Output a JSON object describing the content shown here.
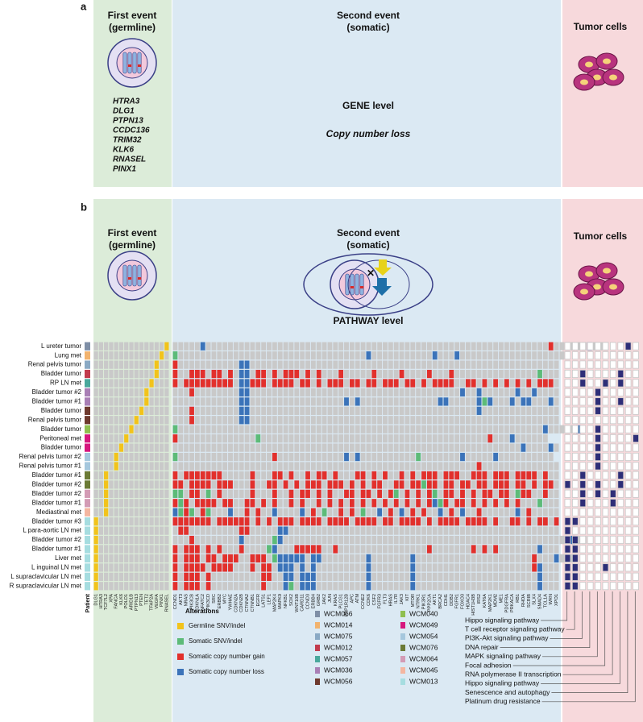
{
  "panel_a": {
    "label": "a",
    "first_event": {
      "title_line1": "First event",
      "title_line2": "(germline)",
      "genes": [
        "HTRA3",
        "DLG1",
        "PTPN13",
        "CCDC136",
        "TRIM32",
        "KLK6",
        "RNASEL",
        "PINX1"
      ]
    },
    "second_event": {
      "title_line1": "Second event",
      "title_line2": "(somatic)",
      "level": "GENE level",
      "note": "Copy number loss"
    },
    "tumor": {
      "title": "Tumor cells"
    }
  },
  "panel_b": {
    "label": "b",
    "first_event": {
      "title_line1": "First event",
      "title_line2": "(germline)"
    },
    "second_event": {
      "title_line1": "Second event",
      "title_line2": "(somatic)",
      "level": "PATHWAY level"
    },
    "tumor": {
      "title": "Tumor cells"
    },
    "heatmap": {
      "patient_label": "Patient",
      "germline_genes": [
        "DLG1",
        "HTRA3",
        "TCF7L2",
        "XPA",
        "FANCA",
        "KLK6",
        "POLD1",
        "ARID1B",
        "PTPN13",
        "PTEN",
        "TET2",
        "TFAP2A",
        "VEGFA",
        "PINX1",
        "RNASEL"
      ],
      "somatic_genes": [
        "CCND1",
        "AKT3",
        "NRAS",
        "PIK3CB",
        "CDKN1A",
        "NFATC2",
        "PIK3CD",
        "SRC",
        "ERBB2",
        "MYC",
        "YWHAE",
        "CDKN2A",
        "CDKN2B",
        "CTNNA2",
        "CTNNB1",
        "EGFR",
        "LATS1",
        "LEF1",
        "MAP2K4",
        "MAPK9",
        "NFKB1",
        "SOX2",
        "WNT10B",
        "CARD11",
        "CCND3",
        "ERBB4",
        "GRB2",
        "JAK2",
        "JUN",
        "KRAS",
        "PLCG1",
        "PPP1R12B",
        "APC",
        "ATM",
        "CCNE2",
        "CDK6",
        "CSF2",
        "FGFR3",
        "FLT3",
        "HRAS",
        "IL7R",
        "JAK3",
        "KIT",
        "MTOR",
        "NTRK1",
        "PIK3R1",
        "PPP2CA",
        "AKT1",
        "BRCA2",
        "CDH1",
        "DDB2",
        "FGFR1",
        "FOXO3",
        "HDAC4",
        "HIST1H3B",
        "IRS2",
        "KAT6A",
        "MAP2K1",
        "MDM2",
        "ME1",
        "PDGFRA",
        "PRKACA",
        "RB1",
        "RHOA",
        "SCRIB",
        "SLX4",
        "SMAD4",
        "TCL1A",
        "WRN",
        "XPO1"
      ],
      "pathways": [
        "Hippo signaling pathway",
        "T cell receptor signaling pathway",
        "PI3K-Akt signaling pathway",
        "DNA repair",
        "MAPK signaling pathway",
        "Focal adhesion",
        "RNA polymerase II transcription",
        "Hippo signaling pathway",
        "Senescence and autophagy",
        "Platinum drug resistance"
      ],
      "rows": [
        {
          "label": "L ureter tumor",
          "patient": "WCM066",
          "germline": "..............g",
          "somatic": ".....b..............................................................r......b...",
          "pathway": "0000000010"
        },
        {
          "label": "Lung met",
          "patient": "WCM014",
          "germline": ".............g.",
          "somatic": "s..................................b...........b...b....................",
          "pathway": "0000000000"
        },
        {
          "label": "Renal pelvis tumor",
          "patient": "WCM075",
          "germline": "............g..",
          "somatic": "r...........bb........................................................",
          "pathway": "0000000000"
        },
        {
          "label": "Bladder tumor",
          "patient": "WCM012",
          "germline": "............g..",
          "somatic": "r..rrr.rr.r.bb.rr.r.rrr.r.r...r.....r....r....r...r...............s...",
          "pathway": "0010000100"
        },
        {
          "label": "RP LN met",
          "patient": "WCM057",
          "germline": "...........g...",
          "somatic": "r.rrrrrrrrr.bbrrr.rrrr.rr.r.rrr.rr.rr.rrr.rr.r.rrrr..rr.r.r.r.r.r.rrr.",
          "pathway": "0010010100"
        },
        {
          "label": "Bladder tumor #2",
          "patient": "WCM036",
          "germline": "..........g....",
          "somatic": "...r........bb......................................b..b......b..b....",
          "pathway": "0000100000"
        },
        {
          "label": "Bladder tumor #1",
          "patient": "WCM036",
          "germline": "..........g....",
          "somatic": "............bb.................b.b..............bb.....bsb...b.bb...b.",
          "pathway": "0000100100"
        },
        {
          "label": "Bladder tumor",
          "patient": "WCM056",
          "germline": ".........g.....",
          "somatic": "...r........bb.........................................b..............",
          "pathway": "0000100000"
        },
        {
          "label": "Renal pelvis tumor",
          "patient": "WCM056",
          "germline": "........g......",
          "somatic": "...r........bb........................................................",
          "pathway": "0000000000"
        },
        {
          "label": "Bladder tumor",
          "patient": "WCM040",
          "germline": ".......g.......",
          "somatic": "s..................................................................b.....b",
          "pathway": "0000100000"
        },
        {
          "label": "Peritoneal met",
          "patient": "WCM049",
          "germline": "......g........",
          "somatic": "r..............s.........................................r...b......",
          "pathway": "0000100001"
        },
        {
          "label": "Bladder tumor",
          "patient": "WCM049",
          "germline": ".....g.........",
          "somatic": "...............................................................b....b.",
          "pathway": "0000100000"
        },
        {
          "label": "Renal pelvis tumor #2",
          "patient": "WCM054",
          "germline": "....g..........",
          "somatic": "s.................r............b.b..........s.......b.....b..........",
          "pathway": "0000100000"
        },
        {
          "label": "Renal pelvis tumor #1",
          "patient": "WCM054",
          "germline": "....g..........",
          "somatic": ".......................................................r..............",
          "pathway": "0000100000"
        },
        {
          "label": "Bladder tumor #1",
          "patient": "WCM076",
          "germline": "..g............",
          "somatic": "r.rrrrrrr.....r...rr.r..r.rr.r...rr.r.r..r.r.rrr.rrr..rrr.rrr.rrrr.r..",
          "pathway": "0010000100"
        },
        {
          "label": "Bladder tumor #2",
          "patient": "WCM076",
          "germline": "..g............",
          "somatic": "rr.rrrr.rrr...r..rr.r.r.rrr.rrr.r.r.rr..rr.rrsrr.rr.rr.rr.rrr.rr.r.rr.",
          "pathway": "1010100100"
        },
        {
          "label": "Bladder tumor #2",
          "patient": "WCM064",
          "germline": "..g............",
          "somatic": "ss.rr.s.r.....r...r..r.rr.r.r..rr.rr.r.rs.r.r.rs.rr.r.r.rr.rr.srr..r..",
          "pathway": "0010101000"
        },
        {
          "label": "Bladder tumor #1",
          "patient": "WCM064",
          "germline": "..g............",
          "somatic": "rsr.rrrr.rr..rr.r.r..r.r..r.r.r.r.r.r.r.r.r.r.rbsr.rr.r.r.r.r.r...s...",
          "pathway": "0010001000"
        },
        {
          "label": "Mediastinal met",
          "patient": "WCM045",
          "germline": "..g............",
          "somatic": "bsrs.rs...b..r.r..b....b.r.s..r.r.s..b.r.b.r.r..b.r.b..r......b.r.....",
          "pathway": "0000000000"
        },
        {
          "label": "Bladder tumor #3",
          "patient": "WCM013",
          "germline": "g..............",
          "somatic": "rrrrrrr.rrrrrr.r.r.rrr.rrrr.rrrr.rrrr.rr.rrrr.r.rrrr.rrrr.r..rr.r.rr.r",
          "pathway": "1100000000"
        },
        {
          "label": "L para-aortic LN met",
          "patient": "WCM013",
          "germline": "g..............",
          "somatic": ".rr.........rr.....bb.................................................",
          "pathway": "1000000000"
        },
        {
          "label": "Bladder tumor #2",
          "patient": "WCM013",
          "germline": "g..............",
          "somatic": "...r........b.....sb....................................................b...",
          "pathway": "1100000000"
        },
        {
          "label": "Bladder tumor #1",
          "patient": "WCM013",
          "germline": "g..............",
          "somatic": "r.rrr.r.r...r....sb...rrrrr..r................r.......r.r.r.......b...",
          "pathway": "1100000000"
        },
        {
          "label": "Liver met",
          "patient": "WCM013",
          "germline": "g..............",
          "somatic": "r.rrr.rr.rrr..rrr.sbbbbb.bb........b.......b.....................r...b...",
          "pathway": "1100000000"
        },
        {
          "label": "L inguinal LN met",
          "patient": "WCM013",
          "germline": "g..............",
          "somatic": "r.rrrr.rrrr...r.rr.bbb.b.b.........b.......b.....................rb...",
          "pathway": "1100010000"
        },
        {
          "label": "L supraclavicular LN met",
          "patient": "WCM013",
          "germline": "g..............",
          "somatic": "r.rrr.r.........rr..bb.bbb.........b.......b......................b...",
          "pathway": "1100000000"
        },
        {
          "label": "R supraclavicular LN met",
          "patient": "WCM013",
          "germline": "g..............",
          "somatic": "r.rrr.r.........r...bs.bbb.........b.......b......................b...",
          "pathway": "1100000000"
        }
      ],
      "alterations": {
        "title": "Alterations",
        "items": [
          {
            "name": "Germline SNV/indel",
            "code": "g",
            "color": "#f2c31b"
          },
          {
            "name": "Somatic SNV/indel",
            "code": "s",
            "color": "#5dbb78"
          },
          {
            "name": "Somatic copy number gain",
            "code": "r",
            "color": "#e2302c"
          },
          {
            "name": "Somatic copy number loss",
            "code": "b",
            "color": "#3b73b9"
          }
        ]
      },
      "patients": [
        {
          "name": "WCM066",
          "color": "#7f8fa6"
        },
        {
          "name": "WCM014",
          "color": "#f2b36e"
        },
        {
          "name": "WCM075",
          "color": "#8aa9c4"
        },
        {
          "name": "WCM012",
          "color": "#c23b4d"
        },
        {
          "name": "WCM057",
          "color": "#49a89c"
        },
        {
          "name": "WCM036",
          "color": "#a97fb5"
        },
        {
          "name": "WCM056",
          "color": "#6e3a2e"
        },
        {
          "name": "WCM040",
          "color": "#8fbf4f"
        },
        {
          "name": "WCM049",
          "color": "#d6177e"
        },
        {
          "name": "WCM054",
          "color": "#a5c7dd"
        },
        {
          "name": "WCM076",
          "color": "#6b7a35"
        },
        {
          "name": "WCM064",
          "color": "#d39bb5"
        },
        {
          "name": "WCM045",
          "color": "#f4b6a0"
        },
        {
          "name": "WCM013",
          "color": "#a6dde0"
        }
      ],
      "pathway_color": "#2e2e78"
    }
  }
}
